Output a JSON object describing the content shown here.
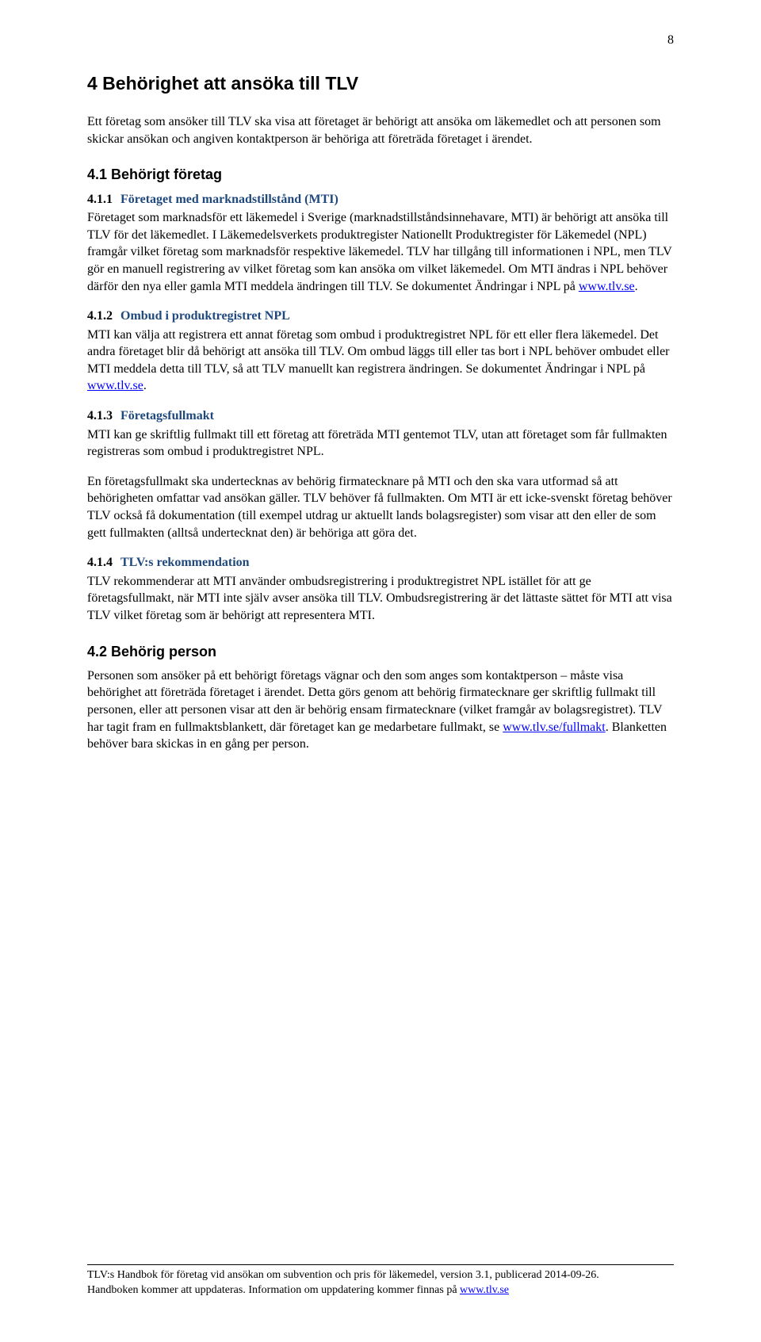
{
  "page_number": "8",
  "h1": "4   Behörighet att ansöka till TLV",
  "intro": "Ett företag som ansöker till TLV ska visa att företaget är behörigt att ansöka om läkemedlet och att personen som skickar ansökan och angiven kontaktperson är behöriga att företräda företaget i ärendet.",
  "h2_41": "4.1   Behörigt företag",
  "h3_411_num": "4.1.1",
  "h3_411_title": "Företaget med marknadstillstånd (MTI)",
  "p_411_a": "Företaget som marknadsför ett läkemedel i Sverige (marknadstillståndsinnehavare, MTI) är behörigt att ansöka till TLV för det läkemedlet. I Läkemedelsverkets produktregister Nationellt Produktregister för Läkemedel (NPL) framgår vilket företag som marknadsför respektive läkemedel. TLV har tillgång till informationen i NPL, men TLV gör en manuell registrering av vilket företag som kan ansöka om vilket läkemedel. Om MTI ändras i NPL behöver därför den nya eller gamla MTI meddela ändringen till TLV. Se dokumentet Ändringar i NPL på ",
  "link_tlv": "www.tlv.se",
  "p_411_b": ".",
  "h3_412_num": "4.1.2",
  "h3_412_title": "Ombud i produktregistret NPL",
  "p_412_a": "MTI kan välja att registrera ett annat företag som ombud i produktregistret NPL för ett eller flera läkemedel. Det andra företaget blir då behörigt att ansöka till TLV. Om ombud läggs till eller tas bort i NPL behöver ombudet eller MTI meddela detta till TLV, så att TLV manuellt kan registrera ändringen. Se dokumentet Ändringar i NPL på ",
  "p_412_b": ".",
  "h3_413_num": "4.1.3",
  "h3_413_title": "Företagsfullmakt",
  "p_413_1": "MTI kan ge skriftlig fullmakt till ett företag att företräda MTI gentemot TLV, utan att företaget som får fullmakten registreras som ombud i produktregistret NPL.",
  "p_413_2": "En företagsfullmakt ska undertecknas av behörig firmatecknare på MTI och den ska vara utformad så att behörigheten omfattar vad ansökan gäller. TLV behöver få fullmakten. Om MTI är ett icke-svenskt företag behöver TLV också få dokumentation (till exempel utdrag ur aktuellt lands bolagsregister) som visar att den eller de som gett fullmakten (alltså undertecknat den) är behöriga att göra det.",
  "h3_414_num": "4.1.4",
  "h3_414_title": "TLV:s rekommendation",
  "p_414": "TLV rekommenderar att MTI använder ombudsregistrering i produktregistret NPL istället för att ge företagsfullmakt, när MTI inte själv avser ansöka till TLV. Ombudsregistrering är det lättaste sättet för MTI att visa TLV vilket företag som är behörigt att representera MTI.",
  "h2_42": "4.2   Behörig person",
  "p_42_a": "Personen som ansöker på ett behörigt företags vägnar och den som anges som kontaktperson – måste visa behörighet att företräda företaget i ärendet. Detta görs genom att behörig firmatecknare ger skriftlig fullmakt till personen, eller att personen visar att den är behörig ensam firmatecknare (vilket framgår av bolagsregistret). TLV har tagit fram en fullmaktsblankett, där företaget kan ge medarbetare fullmakt, se ",
  "link_fullmakt": "www.tlv.se/fullmakt",
  "p_42_b": ". Blanketten behöver bara skickas in en gång per person.",
  "footer_line1": "TLV:s Handbok för företag vid ansökan om subvention och pris för läkemedel, version 3.1, publicerad 2014-09-26.",
  "footer_line2a": "Handboken kommer att uppdateras. Information om uppdatering kommer finnas på ",
  "footer_link": "www.tlv.se"
}
